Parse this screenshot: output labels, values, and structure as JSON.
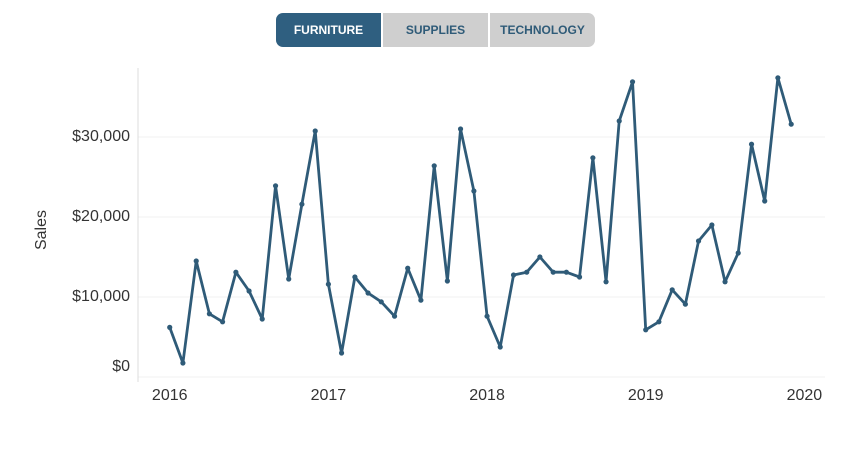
{
  "controls": {
    "options": [
      "FURNITURE",
      "SUPPLIES",
      "TECHNOLOGY"
    ],
    "selected_index": 0
  },
  "chart_data": {
    "type": "line",
    "y_label": "Sales",
    "x": [
      2016,
      2016.083,
      2016.167,
      2016.25,
      2016.333,
      2016.417,
      2016.5,
      2016.583,
      2016.667,
      2016.75,
      2016.833,
      2016.917,
      2017,
      2017.083,
      2017.167,
      2017.25,
      2017.333,
      2017.417,
      2017.5,
      2017.583,
      2017.667,
      2017.75,
      2017.833,
      2017.917,
      2018,
      2018.083,
      2018.167,
      2018.25,
      2018.333,
      2018.417,
      2018.5,
      2018.583,
      2018.667,
      2018.75,
      2018.833,
      2018.917,
      2019,
      2019.083,
      2019.167,
      2019.25,
      2019.333,
      2019.417,
      2019.5,
      2019.583,
      2019.667,
      2019.75,
      2019.833,
      2019.917
    ],
    "series": [
      {
        "name": "Sales",
        "color": "#2f5b78",
        "values": [
          6200,
          1750,
          14500,
          7900,
          6900,
          13100,
          10750,
          7250,
          23900,
          12250,
          21600,
          30750,
          11600,
          3000,
          12500,
          10500,
          9400,
          7600,
          13600,
          9600,
          26400,
          12000,
          31000,
          23250,
          7600,
          3750,
          12750,
          13100,
          15000,
          13100,
          13100,
          12500,
          27400,
          11900,
          32000,
          36900,
          5900,
          6900,
          10900,
          9100,
          17000,
          19000,
          11900,
          15500,
          29100,
          22000,
          37400,
          31600
        ]
      }
    ],
    "xlim": [
      2015.8,
      2020.13
    ],
    "xticks": [
      2016,
      2017,
      2018,
      2019,
      2020
    ],
    "ylim": [
      0,
      38000
    ],
    "yticks": [
      {
        "value": 0,
        "label": "$0"
      },
      {
        "value": 10000,
        "label": "$10,000"
      },
      {
        "value": 20000,
        "label": "$20,000"
      },
      {
        "value": 30000,
        "label": "$30,000"
      }
    ],
    "grid": true,
    "markers": true
  }
}
